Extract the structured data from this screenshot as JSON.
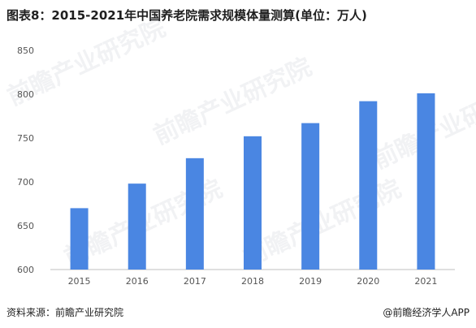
{
  "page": {
    "title": "图表8：2015-2021年中国养老院需求规模体量测算(单位：万人)",
    "source": "资料来源：前瞻产业研究院",
    "credit": "@前瞻经济学人APP",
    "watermark_text": "前瞻产业研究院"
  },
  "colors": {
    "bar": "#4a86e2",
    "axis": "#bfbfbf",
    "tick_text": "#555555",
    "watermark": "#8c96a8"
  },
  "chart_data": {
    "type": "bar",
    "title": "图表8：2015-2021年中国养老院需求规模体量测算(单位：万人)",
    "xlabel": "",
    "ylabel": "",
    "categories": [
      "2015",
      "2016",
      "2017",
      "2018",
      "2019",
      "2020",
      "2021"
    ],
    "values": [
      670,
      698,
      727,
      752,
      767,
      792,
      801
    ],
    "ylim": [
      600,
      850
    ],
    "yticks": [
      600,
      650,
      700,
      750,
      800,
      850
    ],
    "grid": false,
    "legend": "none"
  }
}
